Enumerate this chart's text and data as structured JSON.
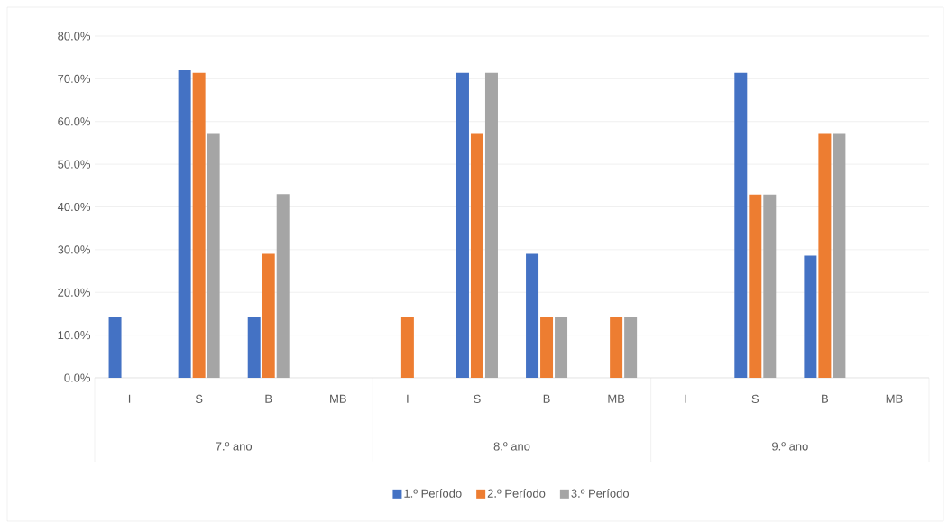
{
  "chart_data": {
    "type": "bar",
    "categories": [
      "I",
      "S",
      "B",
      "MB",
      "I",
      "S",
      "B",
      "MB",
      "I",
      "S",
      "B",
      "MB"
    ],
    "annotations": [
      "7.º ano",
      "8.º ano",
      "9.º ano"
    ],
    "series": [
      {
        "name": "1.º Período",
        "color": "#4472c4",
        "values": [
          14.3,
          72.0,
          14.3,
          0,
          0,
          71.4,
          29.0,
          0,
          0,
          71.4,
          28.6,
          0
        ]
      },
      {
        "name": "2.º Período",
        "color": "#ed7d31",
        "values": [
          0,
          71.4,
          29.0,
          0,
          14.3,
          57.1,
          14.3,
          14.3,
          0,
          42.9,
          57.1,
          0
        ]
      },
      {
        "name": "3.º Período",
        "color": "#a5a5a5",
        "values": [
          0,
          57.1,
          43.0,
          0,
          0,
          71.4,
          14.3,
          14.3,
          0,
          42.9,
          57.1,
          0
        ]
      }
    ],
    "ylim": [
      0,
      80
    ],
    "yticks": [
      {
        "value": 0,
        "label": "0.0%"
      },
      {
        "value": 10,
        "label": "10.0%"
      },
      {
        "value": 20,
        "label": "20.0%"
      },
      {
        "value": 30,
        "label": "30.0%"
      },
      {
        "value": 40,
        "label": "40.0%"
      },
      {
        "value": 50,
        "label": "50.0%"
      },
      {
        "value": 60,
        "label": "60.0%"
      },
      {
        "value": 70,
        "label": "70.0%"
      },
      {
        "value": 80,
        "label": "80.0%"
      }
    ],
    "grid": "y",
    "legend": "bottom"
  }
}
